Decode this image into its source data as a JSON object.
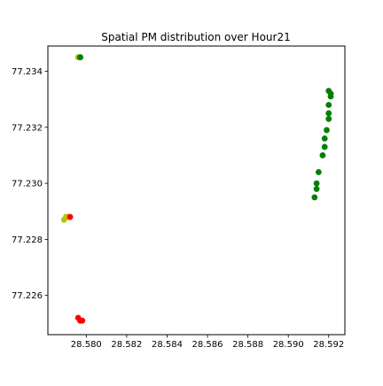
{
  "chart_data": {
    "type": "scatter",
    "title": "Spatial PM distribution over Hour21",
    "xlabel": "",
    "ylabel": "",
    "xlim": [
      28.5781,
      28.5928
    ],
    "ylim": [
      77.2246,
      77.2349
    ],
    "x_ticks": [
      {
        "value": 28.58,
        "label": "28.580"
      },
      {
        "value": 28.582,
        "label": "28.582"
      },
      {
        "value": 28.584,
        "label": "28.584"
      },
      {
        "value": 28.586,
        "label": "28.586"
      },
      {
        "value": 28.588,
        "label": "28.588"
      },
      {
        "value": 28.59,
        "label": "28.590"
      },
      {
        "value": 28.592,
        "label": "28.592"
      }
    ],
    "y_ticks": [
      {
        "value": 77.226,
        "label": "77.226"
      },
      {
        "value": 77.228,
        "label": "77.228"
      },
      {
        "value": 77.23,
        "label": "77.230"
      },
      {
        "value": 77.232,
        "label": "77.232"
      },
      {
        "value": 77.234,
        "label": "77.234"
      }
    ],
    "grid": false,
    "colors": {
      "green": "#008000",
      "yellow": "#bfbf00",
      "red": "#ff0000"
    },
    "points": [
      {
        "x": 28.5796,
        "y": 77.2345,
        "color": "yellow"
      },
      {
        "x": 28.5797,
        "y": 77.2345,
        "color": "green"
      },
      {
        "x": 28.5797,
        "y": 77.2345,
        "color": "green"
      },
      {
        "x": 28.592,
        "y": 77.2333,
        "color": "green"
      },
      {
        "x": 28.5921,
        "y": 77.2332,
        "color": "green"
      },
      {
        "x": 28.5921,
        "y": 77.2331,
        "color": "green"
      },
      {
        "x": 28.592,
        "y": 77.2328,
        "color": "green"
      },
      {
        "x": 28.592,
        "y": 77.2325,
        "color": "green"
      },
      {
        "x": 28.592,
        "y": 77.2323,
        "color": "green"
      },
      {
        "x": 28.5919,
        "y": 77.2319,
        "color": "green"
      },
      {
        "x": 28.5918,
        "y": 77.2316,
        "color": "green"
      },
      {
        "x": 28.5918,
        "y": 77.2313,
        "color": "green"
      },
      {
        "x": 28.5917,
        "y": 77.231,
        "color": "green"
      },
      {
        "x": 28.5915,
        "y": 77.2304,
        "color": "green"
      },
      {
        "x": 28.5914,
        "y": 77.23,
        "color": "green"
      },
      {
        "x": 28.5914,
        "y": 77.2298,
        "color": "green"
      },
      {
        "x": 28.5913,
        "y": 77.2295,
        "color": "green"
      },
      {
        "x": 28.5789,
        "y": 77.2287,
        "color": "yellow"
      },
      {
        "x": 28.579,
        "y": 77.2288,
        "color": "yellow"
      },
      {
        "x": 28.579,
        "y": 77.2288,
        "color": "yellow"
      },
      {
        "x": 28.5791,
        "y": 77.2288,
        "color": "yellow"
      },
      {
        "x": 28.5792,
        "y": 77.2288,
        "color": "red"
      },
      {
        "x": 28.5796,
        "y": 77.2252,
        "color": "red"
      },
      {
        "x": 28.5797,
        "y": 77.2251,
        "color": "red"
      },
      {
        "x": 28.5798,
        "y": 77.2251,
        "color": "red"
      }
    ]
  }
}
